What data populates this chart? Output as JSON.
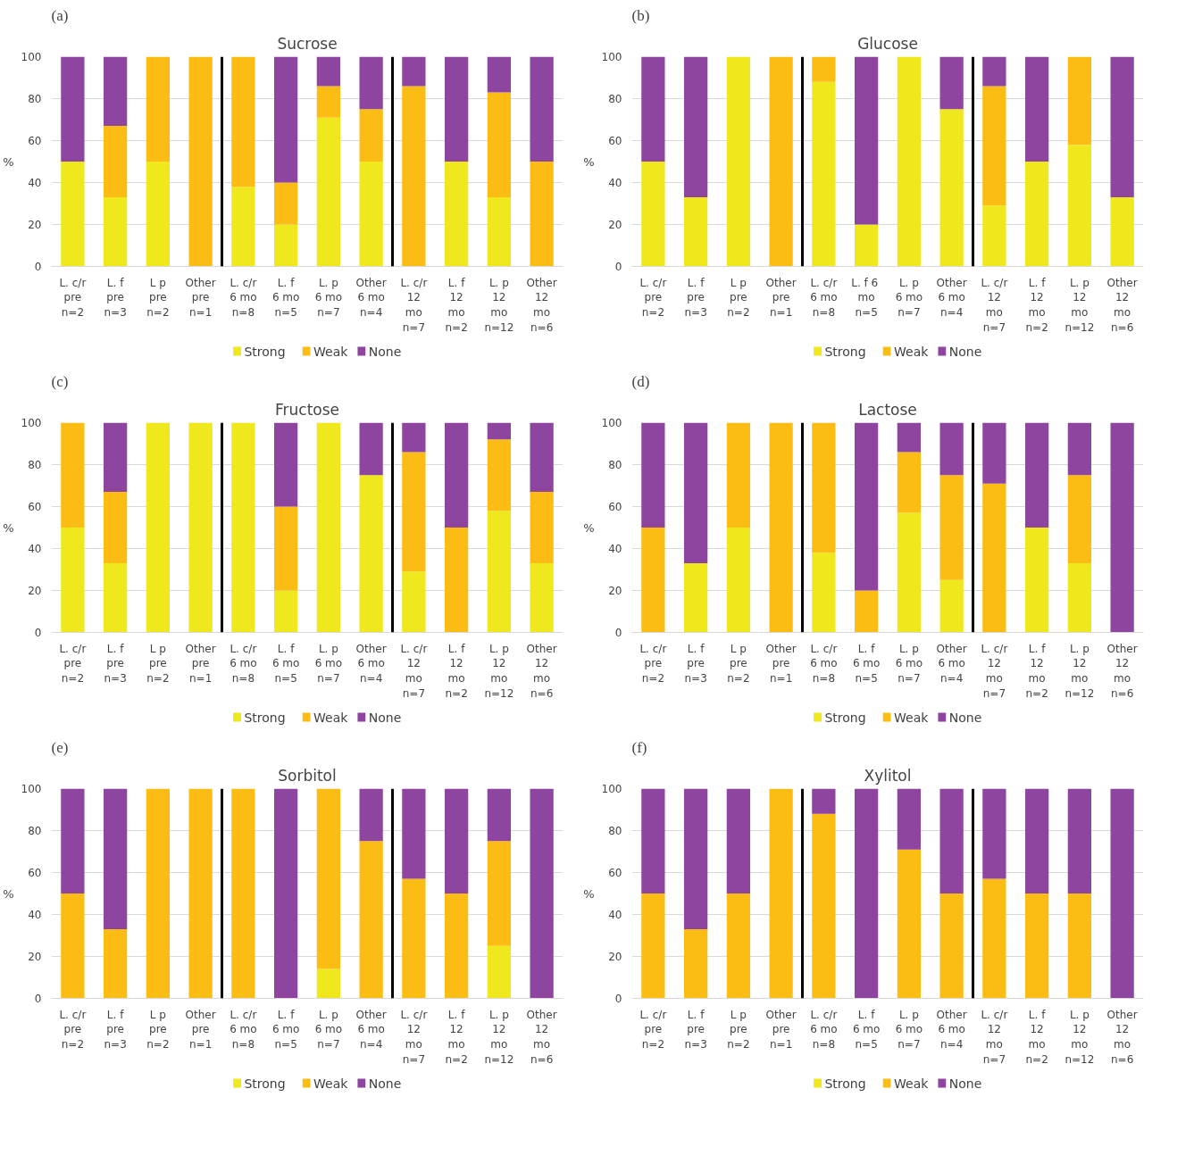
{
  "chart_data": [
    {
      "type": "bar",
      "stacked": true,
      "title": "Sucrose",
      "ylabel": "%",
      "annotations": [
        "(a)"
      ],
      "categories": [
        "L. c/r\npre\nn=2",
        "L. f\npre\nn=3",
        "L p\npre\nn=2",
        "Other\npre\nn=1",
        "L. c/r\n6 mo\nn=8",
        "L. f\n6 mo\nn=5",
        "L. p\n6 mo\nn=7",
        "Other\n6 mo\nn=4",
        "L. c/r\n12\nmo\nn=7",
        "L. f\n12\nmo\nn=2",
        "L. p\n12\nmo\nn=12",
        "Other\n12\nmo\nn=6"
      ],
      "series": [
        {
          "name": "Strong",
          "color": "#eee81c",
          "values": [
            50,
            33,
            50,
            0,
            38,
            20,
            71,
            50,
            0,
            50,
            33,
            0
          ]
        },
        {
          "name": "Weak",
          "color": "#fbbd14",
          "values": [
            0,
            34,
            50,
            100,
            62,
            20,
            15,
            25,
            86,
            0,
            50,
            50
          ]
        },
        {
          "name": "None",
          "color": "#8e45a0",
          "values": [
            50,
            33,
            0,
            0,
            0,
            60,
            14,
            25,
            14,
            50,
            17,
            50
          ]
        }
      ],
      "ylim": [
        0,
        100
      ],
      "yticks": [
        0,
        20,
        40,
        60,
        80,
        100
      ],
      "grid": "y",
      "legend": "bottom"
    },
    {
      "type": "bar",
      "stacked": true,
      "title": "Glucose",
      "ylabel": "%",
      "annotations": [
        "(b)"
      ],
      "categories": [
        "L. c/r\npre\nn=2",
        "L. f\npre\nn=3",
        "L p\npre\nn=2",
        "Other\npre\nn=1",
        "L. c/r\n6 mo\nn=8",
        "L. f  6\nmo\nn=5",
        "L. p\n6 mo\nn=7",
        "Other\n6 mo\nn=4",
        "L. c/r\n12\nmo\nn=7",
        "L. f\n12\nmo\nn=2",
        "L. p\n12\nmo\nn=12",
        "Other\n12\nmo\nn=6"
      ],
      "series": [
        {
          "name": "Strong",
          "color": "#eee81c",
          "values": [
            50,
            33,
            100,
            0,
            88,
            20,
            100,
            75,
            29,
            50,
            58,
            33
          ]
        },
        {
          "name": "Weak",
          "color": "#fbbd14",
          "values": [
            0,
            0,
            0,
            100,
            12,
            0,
            0,
            0,
            57,
            0,
            42,
            0
          ]
        },
        {
          "name": "None",
          "color": "#8e45a0",
          "values": [
            50,
            67,
            0,
            0,
            0,
            80,
            0,
            25,
            14,
            50,
            0,
            67
          ]
        }
      ],
      "ylim": [
        0,
        100
      ],
      "yticks": [
        0,
        20,
        40,
        60,
        80,
        100
      ],
      "grid": "y",
      "legend": "bottom"
    },
    {
      "type": "bar",
      "stacked": true,
      "title": "Fructose",
      "ylabel": "%",
      "annotations": [
        "(c)"
      ],
      "categories": [
        "L. c/r\npre\nn=2",
        "L. f\npre\nn=3",
        "L p\npre\nn=2",
        "Other\npre\nn=1",
        "L. c/r\n6 mo\nn=8",
        "L. f\n6 mo\nn=5",
        "L. p\n6 mo\nn=7",
        "Other\n6 mo\nn=4",
        "L. c/r\n12\nmo\nn=7",
        "L. f\n12\nmo\nn=2",
        "L. p\n12\nmo\nn=12",
        "Other\n12\nmo\nn=6"
      ],
      "series": [
        {
          "name": "Strong",
          "color": "#eee81c",
          "values": [
            50,
            33,
            100,
            100,
            100,
            20,
            100,
            75,
            29,
            0,
            58,
            33
          ]
        },
        {
          "name": "Weak",
          "color": "#fbbd14",
          "values": [
            50,
            34,
            0,
            0,
            0,
            40,
            0,
            0,
            57,
            50,
            34,
            34
          ]
        },
        {
          "name": "None",
          "color": "#8e45a0",
          "values": [
            0,
            33,
            0,
            0,
            0,
            40,
            0,
            25,
            14,
            50,
            8,
            33
          ]
        }
      ],
      "ylim": [
        0,
        100
      ],
      "yticks": [
        0,
        20,
        40,
        60,
        80,
        100
      ],
      "grid": "y",
      "legend": "bottom"
    },
    {
      "type": "bar",
      "stacked": true,
      "title": "Lactose",
      "ylabel": "%",
      "annotations": [
        "(d)"
      ],
      "categories": [
        "L. c/r\npre\nn=2",
        "L. f\npre\nn=3",
        "L p\npre\nn=2",
        "Other\npre\nn=1",
        "L. c/r\n6 mo\nn=8",
        "L. f\n6 mo\nn=5",
        "L. p\n6 mo\nn=7",
        "Other\n6 mo\nn=4",
        "L. c/r\n12\nmo\nn=7",
        "L. f\n12\nmo\nn=2",
        "L. p\n12\nmo\nn=12",
        "Other\n12\nmo\nn=6"
      ],
      "series": [
        {
          "name": "Strong",
          "color": "#eee81c",
          "values": [
            0,
            33,
            50,
            0,
            38,
            0,
            57,
            25,
            0,
            50,
            33,
            0
          ]
        },
        {
          "name": "Weak",
          "color": "#fbbd14",
          "values": [
            50,
            0,
            50,
            100,
            62,
            20,
            29,
            50,
            71,
            0,
            42,
            0
          ]
        },
        {
          "name": "None",
          "color": "#8e45a0",
          "values": [
            50,
            67,
            0,
            0,
            0,
            80,
            14,
            25,
            29,
            50,
            25,
            100
          ]
        }
      ],
      "ylim": [
        0,
        100
      ],
      "yticks": [
        0,
        20,
        40,
        60,
        80,
        100
      ],
      "grid": "y",
      "legend": "bottom"
    },
    {
      "type": "bar",
      "stacked": true,
      "title": "Sorbitol",
      "ylabel": "%",
      "annotations": [
        "(e)"
      ],
      "categories": [
        "L. c/r\npre\nn=2",
        "L. f\npre\nn=3",
        "L p\npre\nn=2",
        "Other\npre\nn=1",
        "L. c/r\n6 mo\nn=8",
        "L. f\n6 mo\nn=5",
        "L. p\n6 mo\nn=7",
        "Other\n6 mo\nn=4",
        "L. c/r\n12\nmo\nn=7",
        "L. f\n12\nmo\nn=2",
        "L. p\n12\nmo\nn=12",
        "Other\n12\nmo\nn=6"
      ],
      "series": [
        {
          "name": "Strong",
          "color": "#eee81c",
          "values": [
            0,
            0,
            0,
            0,
            0,
            0,
            14,
            0,
            0,
            0,
            25,
            0
          ]
        },
        {
          "name": "Weak",
          "color": "#fbbd14",
          "values": [
            50,
            33,
            100,
            100,
            100,
            0,
            86,
            75,
            57,
            50,
            50,
            0
          ]
        },
        {
          "name": "None",
          "color": "#8e45a0",
          "values": [
            50,
            67,
            0,
            0,
            0,
            100,
            0,
            25,
            43,
            50,
            25,
            100
          ]
        }
      ],
      "ylim": [
        0,
        100
      ],
      "yticks": [
        0,
        20,
        40,
        60,
        80,
        100
      ],
      "grid": "y",
      "legend": "bottom"
    },
    {
      "type": "bar",
      "stacked": true,
      "title": "Xylitol",
      "ylabel": "%",
      "annotations": [
        "(f)"
      ],
      "categories": [
        "L. c/r\npre\nn=2",
        "L. f\npre\nn=3",
        "L p\npre\nn=2",
        "Other\npre\nn=1",
        "L. c/r\n6 mo\nn=8",
        "L. f\n6 mo\nn=5",
        "L. p\n6 mo\nn=7",
        "Other\n6 mo\nn=4",
        "L. c/r\n12\nmo\nn=7",
        "L. f\n12\nmo\nn=2",
        "L. p\n12\nmo\nn=12",
        "Other\n12\nmo\nn=6"
      ],
      "series": [
        {
          "name": "Strong",
          "color": "#eee81c",
          "values": [
            0,
            0,
            0,
            0,
            0,
            0,
            0,
            0,
            0,
            0,
            0,
            0
          ]
        },
        {
          "name": "Weak",
          "color": "#fbbd14",
          "values": [
            50,
            33,
            50,
            100,
            88,
            0,
            71,
            50,
            57,
            50,
            50,
            0
          ]
        },
        {
          "name": "None",
          "color": "#8e45a0",
          "values": [
            50,
            67,
            50,
            0,
            12,
            100,
            29,
            50,
            43,
            50,
            50,
            100
          ]
        }
      ],
      "ylim": [
        0,
        100
      ],
      "yticks": [
        0,
        20,
        40,
        60,
        80,
        100
      ],
      "grid": "y",
      "legend": "bottom"
    }
  ]
}
